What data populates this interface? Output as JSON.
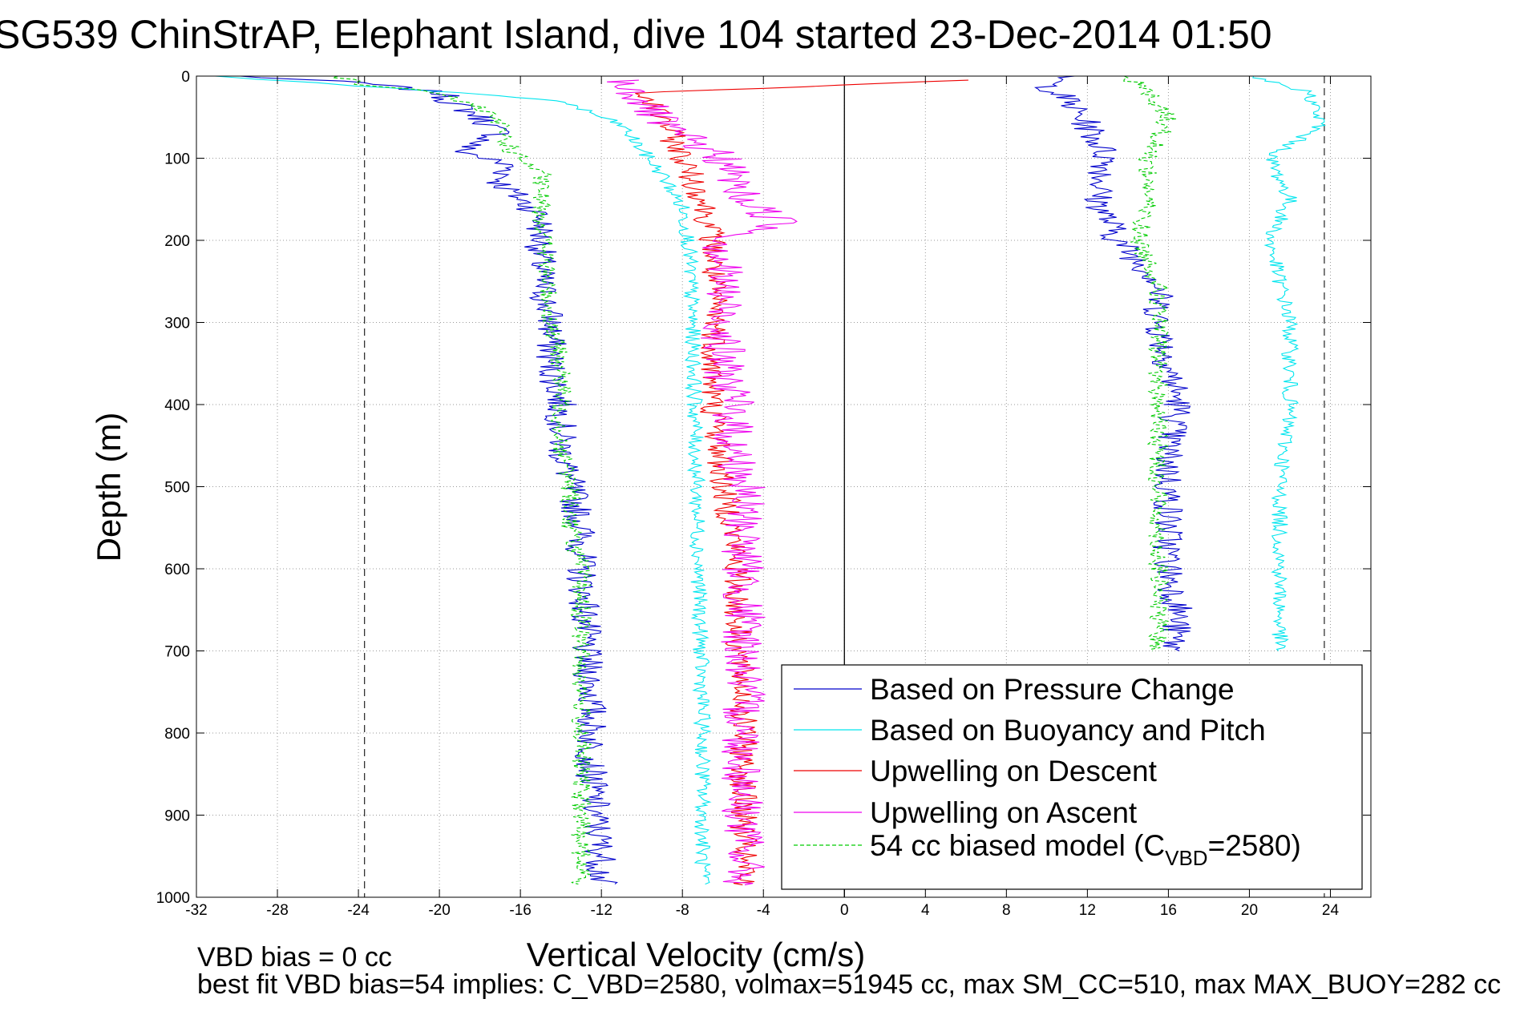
{
  "chart_data": {
    "type": "line",
    "title": "SG539 ChinStrAP, Elephant Island, dive 104 started 23-Dec-2014 01:50",
    "xlabel": "Vertical Velocity (cm/s)",
    "ylabel": "Depth (m)",
    "xlim": [
      -32,
      26
    ],
    "ylim": [
      0,
      1000
    ],
    "y_reversed": true,
    "x_ticks": [
      -32,
      -28,
      -24,
      -20,
      -16,
      -12,
      -8,
      -4,
      0,
      4,
      8,
      12,
      16,
      20,
      24
    ],
    "x_tick_labels": [
      "-32",
      "-28",
      "-24",
      "-20",
      "-16",
      "-12",
      "-8",
      "-4",
      "0",
      "4",
      "8",
      "12",
      "16",
      "20",
      "24"
    ],
    "y_ticks": [
      0,
      100,
      200,
      300,
      400,
      500,
      600,
      700,
      800,
      900,
      1000
    ],
    "y_tick_labels": [
      "0",
      "100",
      "200",
      "300",
      "400",
      "500",
      "600",
      "700",
      "800",
      "900",
      "1000"
    ],
    "grid": true,
    "legend_position": "bottom-right",
    "reference_lines": [
      {
        "x": -23.7,
        "style": "dashed",
        "color": "#333333"
      },
      {
        "x": 23.7,
        "style": "dashed",
        "color": "#333333"
      },
      {
        "x": 0,
        "style": "solid",
        "color": "#000000"
      }
    ],
    "series": [
      {
        "name": "Based on Pressure Change",
        "color": "#0000cc",
        "style": "solid",
        "noise": 0.8,
        "segments": [
          {
            "depth": [
              0,
              8,
              20,
              30,
              50,
              70,
              90,
              110,
              130,
              150,
              170,
              200,
              250,
              300,
              350,
              400,
              450,
              500,
              550,
              600,
              650,
              700,
              750,
              800,
              850,
              900,
              950,
              985
            ],
            "x": [
              -30,
              -24,
              -20,
              -19.5,
              -18,
              -17,
              -19,
              -16.5,
              -17,
              -16,
              -15,
              -15,
              -15,
              -14.5,
              -14.5,
              -14,
              -14,
              -13.5,
              -13,
              -13,
              -12.8,
              -12.8,
              -12.5,
              -12.5,
              -12.5,
              -12.3,
              -12,
              -12
            ]
          },
          {
            "depth": [
              0,
              10,
              30,
              60,
              100,
              150,
              200,
              250,
              300,
              350,
              400,
              450,
              500,
              550,
              600,
              650,
              700
            ],
            "x": [
              11,
              10,
              11,
              12,
              13,
              12.5,
              13.5,
              15.5,
              15.5,
              16,
              16.5,
              16,
              16,
              16,
              16,
              16.5,
              16.2
            ]
          }
        ]
      },
      {
        "name": "Based on Buoyancy and Pitch",
        "color": "#00e5ee",
        "style": "solid",
        "noise": 0.4,
        "segments": [
          {
            "depth": [
              0,
              10,
              30,
              60,
              90,
              120,
              160,
              200,
              300,
              400,
              500,
              600,
              700,
              800,
              900,
              985
            ],
            "x": [
              -31,
              -25,
              -14,
              -11,
              -10,
              -9,
              -8,
              -7.7,
              -7.5,
              -7.4,
              -7.3,
              -7.2,
              -7.1,
              -7,
              -7,
              -7
            ]
          },
          {
            "depth": [
              0,
              20,
              60,
              100,
              150,
              200,
              250,
              300,
              400,
              500,
              600,
              700
            ],
            "x": [
              20,
              23,
              23.5,
              21,
              22,
              21,
              21.5,
              22,
              22,
              21.5,
              21.5,
              21.5
            ]
          }
        ]
      },
      {
        "name": "Upwelling on Descent",
        "color": "#ee0000",
        "style": "solid",
        "noise": 0.7,
        "segments": [
          {
            "depth": [
              5,
              20,
              50,
              100,
              150,
              200,
              250,
              300,
              350,
              400,
              450,
              500,
              550,
              600,
              650,
              700,
              750,
              800,
              850,
              900,
              950,
              985
            ],
            "x": [
              6,
              -10,
              -9,
              -8,
              -7,
              -6.5,
              -6.5,
              -6.3,
              -6.5,
              -6.5,
              -6.2,
              -6,
              -5.5,
              -5.3,
              -5.3,
              -5.2,
              -5,
              -5,
              -5,
              -5,
              -5,
              -5
            ]
          }
        ]
      },
      {
        "name": "Upwelling on Ascent",
        "color": "#ee00ee",
        "style": "solid",
        "noise": 1.1,
        "segments": [
          {
            "depth": [
              5,
              30,
              60,
              100,
              150,
              180,
              200,
              250,
              300,
              350,
              400,
              450,
              500,
              550,
              600,
              650,
              700,
              750,
              800,
              850,
              900,
              950,
              985
            ],
            "x": [
              -11,
              -10,
              -9,
              -6,
              -5,
              -3,
              -6,
              -6,
              -6,
              -6,
              -5.5,
              -5.5,
              -5,
              -5,
              -5,
              -5,
              -5,
              -5,
              -5,
              -5,
              -5,
              -5,
              -5
            ]
          }
        ]
      },
      {
        "name": "54 cc biased model (C_VBD=2580)",
        "color": "#00cc00",
        "style": "dashed",
        "noise": 0.5,
        "segments": [
          {
            "depth": [
              0,
              10,
              20,
              40,
              60,
              90,
              120,
              150,
              200,
              250,
              300,
              350,
              400,
              450,
              500,
              550,
              600,
              650,
              700,
              750,
              800,
              850,
              900,
              950,
              985
            ],
            "x": [
              -25,
              -24,
              -20,
              -18,
              -17,
              -16.5,
              -15,
              -15,
              -14.8,
              -14.7,
              -14.5,
              -14,
              -14,
              -14,
              -13.5,
              -13.5,
              -13,
              -13,
              -13,
              -13,
              -13,
              -13,
              -13,
              -13,
              -13
            ]
          },
          {
            "depth": [
              0,
              20,
              50,
              100,
              150,
              200,
              250,
              300,
              350,
              400,
              450,
              500,
              550,
              600,
              650,
              700
            ],
            "x": [
              14,
              15,
              16,
              15,
              15,
              14.5,
              15.5,
              15.5,
              15.5,
              15.5,
              15.5,
              15.5,
              15.5,
              15.5,
              15.5,
              15.5
            ]
          }
        ]
      }
    ],
    "legend_entries": [
      {
        "label": "Based on Pressure Change",
        "color": "#0000cc",
        "style": "solid"
      },
      {
        "label": "Based on Buoyancy and Pitch",
        "color": "#00e5ee",
        "style": "solid"
      },
      {
        "label": "Upwelling on Descent",
        "color": "#ee0000",
        "style": "solid"
      },
      {
        "label": "Upwelling on Ascent",
        "color": "#ee00ee",
        "style": "solid"
      },
      {
        "label_main": "54 cc biased model (C",
        "label_sub": "VBD",
        "label_tail": "=2580)",
        "color": "#00cc00",
        "style": "dashed"
      }
    ]
  },
  "footer": {
    "line1": "VBD bias = 0 cc",
    "line2": "best fit VBD bias=54 implies: C_VBD=2580, volmax=51945 cc, max SM_CC=510, max MAX_BUOY=282 cc"
  }
}
